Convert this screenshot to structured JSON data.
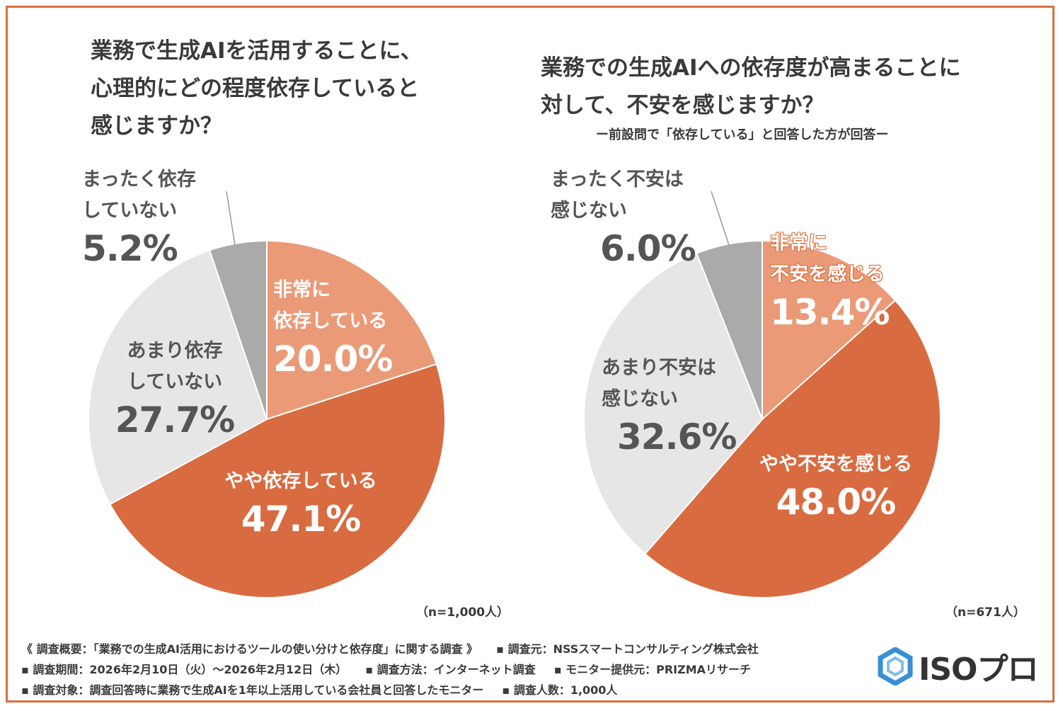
{
  "chart_data": [
    {
      "type": "pie",
      "title": "業務で生成AIを活用することに、心理的にどの程度依存していると感じますか？",
      "subtitle": "",
      "n_label": "（n=1,000人）",
      "slices": [
        {
          "label": "非常に依存している",
          "label_lines": [
            "非常に",
            "依存している"
          ],
          "value": 20.0,
          "pct": "20.0%",
          "color": "#eb9a78"
        },
        {
          "label": "やや依存している",
          "label_lines": [
            "やや依存している"
          ],
          "value": 47.1,
          "pct": "47.1%",
          "color": "#d96b40"
        },
        {
          "label": "あまり依存していない",
          "label_lines": [
            "あまり依存",
            "していない"
          ],
          "value": 27.7,
          "pct": "27.7%",
          "color": "#e6e6e6"
        },
        {
          "label": "まったく依存していない",
          "label_lines": [
            "まったく依存",
            "していない"
          ],
          "value": 5.2,
          "pct": "5.2%",
          "color": "#aaaaaa"
        }
      ]
    },
    {
      "type": "pie",
      "title": "業務での生成AIへの依存度が高まることに対して、不安を感じますか？",
      "subtitle": "ー前設問で「依存している」と回答した方が回答ー",
      "n_label": "（n=671人）",
      "slices": [
        {
          "label": "非常に不安を感じる",
          "label_lines": [
            "非常に",
            "不安を感じる"
          ],
          "value": 13.4,
          "pct": "13.4%",
          "color": "#eb9a78"
        },
        {
          "label": "やや不安を感じる",
          "label_lines": [
            "やや不安を感じる"
          ],
          "value": 48.0,
          "pct": "48.0%",
          "color": "#d96b40"
        },
        {
          "label": "あまり不安は感じない",
          "label_lines": [
            "あまり不安は",
            "感じない"
          ],
          "value": 32.6,
          "pct": "32.6%",
          "color": "#e6e6e6"
        },
        {
          "label": "まったく不安は感じない",
          "label_lines": [
            "まったく不安は",
            "感じない"
          ],
          "value": 6.0,
          "pct": "6.0%",
          "color": "#aaaaaa"
        }
      ]
    }
  ],
  "titles": {
    "left_line1": "業務で生成AIを活用することに、",
    "left_line2": "心理的にどの程度依存していると",
    "left_line3": "感じますか？",
    "right_line1": "業務での生成AIへの依存度が高まることに",
    "right_line2": "対して、不安を感じますか？"
  },
  "footer": {
    "line1_a": "《 調査概要：「業務での生成AI活用におけるツールの使い分けと依存度」に関する調査 》",
    "line1_b": "▪ 調査元：NSSスマートコンサルティング株式会社",
    "line2_a": "▪ 調査期間：2026年2月10日（火）〜2026年2月12日（木）",
    "line2_b": "▪ 調査方法：インターネット調査",
    "line2_c": "▪ モニター提供元：PRIZMAリサーチ",
    "line3_a": "▪ 調査対象：調査回答時に業務で生成AIを1年以上活用している会社員と回答したモニター",
    "line3_b": "▪ 調査人数：1,000人"
  },
  "logo": {
    "text": "ISOプロ",
    "icon": "hexagon-logo-icon",
    "color": "#3a8fd6"
  },
  "colors": {
    "frame": "#d9703f",
    "accent": "#d96b40",
    "light_accent": "#eb9a78",
    "gray_light": "#e6e6e6",
    "gray_dark": "#aaaaaa"
  }
}
